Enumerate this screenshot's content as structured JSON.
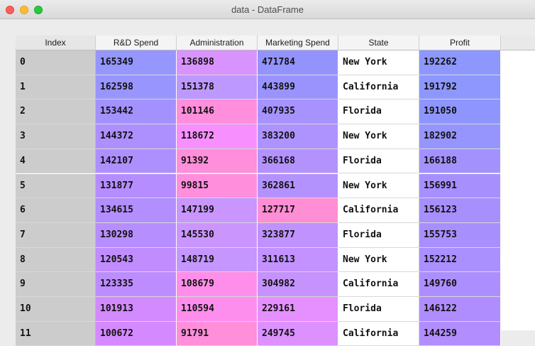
{
  "window": {
    "title": "data - DataFrame"
  },
  "table": {
    "columns": [
      "Index",
      "R&D Spend",
      "Administration",
      "Marketing Spend",
      "State",
      "Profit"
    ],
    "rows": [
      {
        "index": "0",
        "cells": [
          "165349",
          "136898",
          "471784",
          "New York",
          "192262"
        ],
        "colors": [
          "#9596fe",
          "#d993fe",
          "#9493fe",
          "#ffffff",
          "#8d97fe"
        ]
      },
      {
        "index": "1",
        "cells": [
          "162598",
          "151378",
          "443899",
          "California",
          "191792"
        ],
        "colors": [
          "#9995fe",
          "#bd98fe",
          "#9a93fe",
          "#ffffff",
          "#8d97fe"
        ]
      },
      {
        "index": "2",
        "cells": [
          "153442",
          "101146",
          "407935",
          "Florida",
          "191050"
        ],
        "colors": [
          "#a392fe",
          "#ff8edd",
          "#a693fe",
          "#ffffff",
          "#8e96fe"
        ]
      },
      {
        "index": "3",
        "cells": [
          "144372",
          "118672",
          "383200",
          "New York",
          "182902"
        ],
        "colors": [
          "#ae8ffe",
          "#f790fe",
          "#ae93fe",
          "#ffffff",
          "#9695fe"
        ]
      },
      {
        "index": "4",
        "cells": [
          "142107",
          "91392",
          "366168",
          "Florida",
          "166188"
        ],
        "colors": [
          "#ae8ffe",
          "#ff8edb",
          "#b392fe",
          "#ffffff",
          "#a391fe"
        ]
      },
      {
        "index": "5",
        "cells": [
          "131877",
          "99815",
          "362861",
          "New York",
          "156991"
        ],
        "colors": [
          "#b58dfe",
          "#ff8edd",
          "#b492fe",
          "#ffffff",
          "#a78ffe"
        ]
      },
      {
        "index": "6",
        "cells": [
          "134615",
          "147199",
          "127717",
          "California",
          "156123"
        ],
        "colors": [
          "#b28efe",
          "#c896fe",
          "#ff8ed4",
          "#ffffff",
          "#a88ffe"
        ]
      },
      {
        "index": "7",
        "cells": [
          "130298",
          "145530",
          "323877",
          "Florida",
          "155753"
        ],
        "colors": [
          "#b68efe",
          "#cb95fe",
          "#bf92fe",
          "#ffffff",
          "#a88ffe"
        ]
      },
      {
        "index": "8",
        "cells": [
          "120543",
          "148719",
          "311613",
          "New York",
          "152212"
        ],
        "colors": [
          "#c08cfe",
          "#c596fe",
          "#c392fe",
          "#ffffff",
          "#aa8ffe"
        ]
      },
      {
        "index": "9",
        "cells": [
          "123335",
          "108679",
          "304982",
          "California",
          "149760"
        ],
        "colors": [
          "#bd8cfe",
          "#fe8ee9",
          "#c692fe",
          "#ffffff",
          "#ad8efe"
        ]
      },
      {
        "index": "10",
        "cells": [
          "101913",
          "110594",
          "229161",
          "Florida",
          "146122"
        ],
        "colors": [
          "#d28afe",
          "#fe8eed",
          "#e590fe",
          "#ffffff",
          "#b08dfe"
        ]
      },
      {
        "index": "11",
        "cells": [
          "100672",
          "91791",
          "249745",
          "California",
          "144259"
        ],
        "colors": [
          "#d48afe",
          "#ff8edb",
          "#dc91fe",
          "#ffffff",
          "#b28dfe"
        ]
      }
    ]
  }
}
